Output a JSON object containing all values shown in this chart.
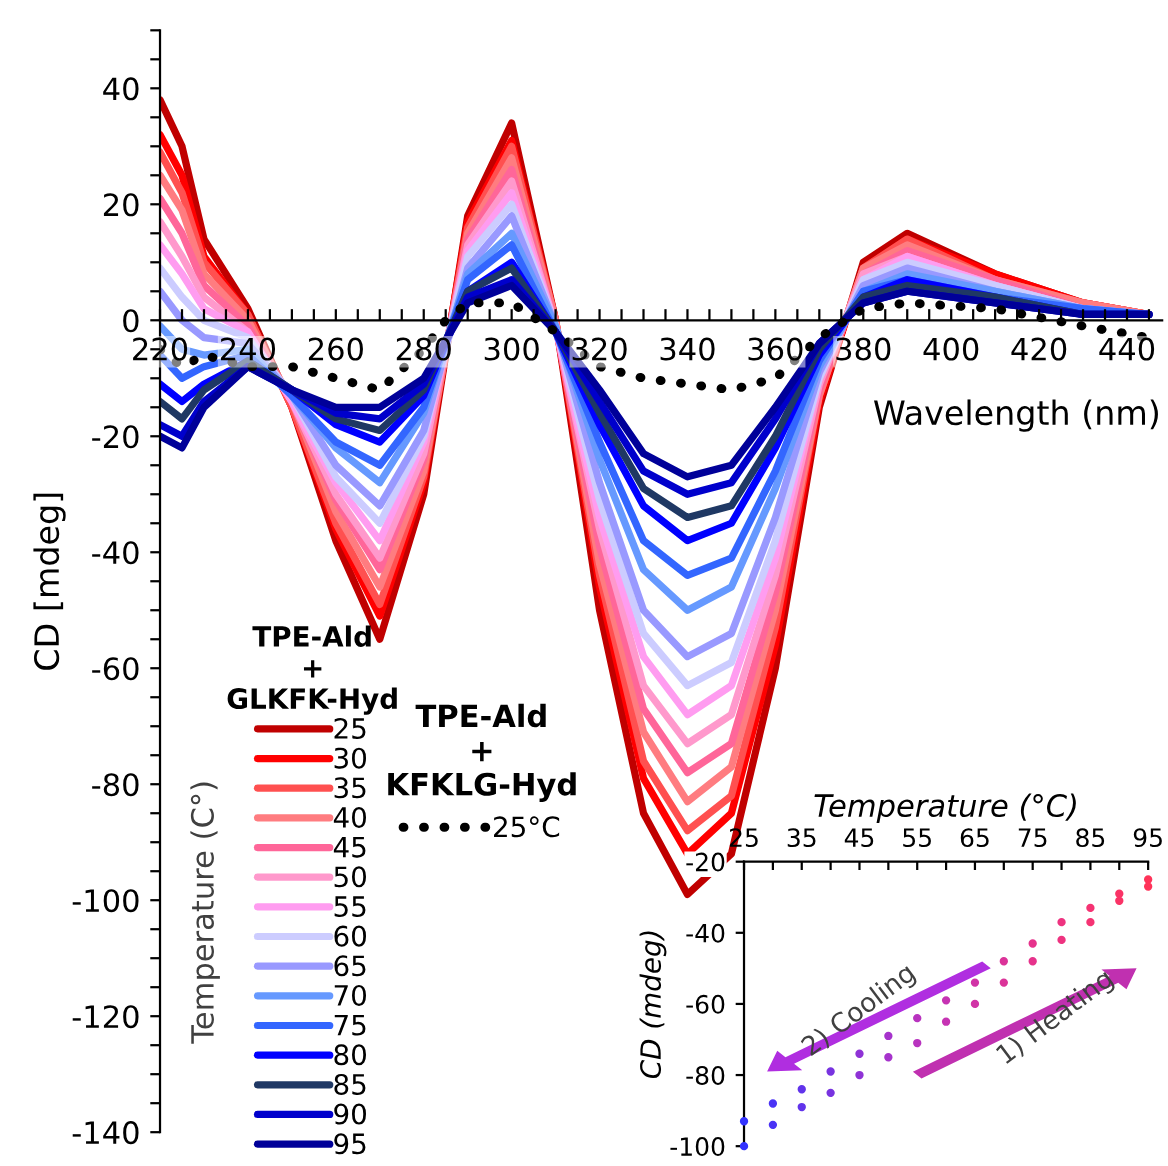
{
  "chart_data": [
    {
      "type": "line",
      "xlabel": "Wavelength (nm)",
      "ylabel": "CD [mdeg]",
      "legend_title": "TPE-Ald\n+\nGLKFK-Hyd",
      "legend": "bottom left",
      "grid": false,
      "marker": "none",
      "line_style": "solid",
      "annotations": [
        "TPE-Ald\n+\nKFKLG-Hyd",
        "Temperature (C°)"
      ],
      "xlim": [
        220,
        448
      ],
      "ylim": [
        -140,
        50
      ],
      "xticks": [
        220,
        {
          "value": 225,
          "label": null
        },
        {
          "value": 230,
          "label": null
        },
        {
          "value": 235,
          "label": null
        },
        240,
        {
          "value": 245,
          "label": null
        },
        {
          "value": 250,
          "label": null
        },
        {
          "value": 255,
          "label": null
        },
        260,
        {
          "value": 265,
          "label": null
        },
        {
          "value": 270,
          "label": null
        },
        {
          "value": 275,
          "label": null
        },
        280,
        {
          "value": 285,
          "label": null
        },
        {
          "value": 290,
          "label": null
        },
        {
          "value": 295,
          "label": null
        },
        300,
        {
          "value": 305,
          "label": null
        },
        {
          "value": 310,
          "label": null
        },
        {
          "value": 315,
          "label": null
        },
        320,
        {
          "value": 325,
          "label": null
        },
        {
          "value": 330,
          "label": null
        },
        {
          "value": 335,
          "label": null
        },
        340,
        {
          "value": 345,
          "label": null
        },
        {
          "value": 350,
          "label": null
        },
        {
          "value": 355,
          "label": null
        },
        360,
        {
          "value": 365,
          "label": null
        },
        {
          "value": 370,
          "label": null
        },
        {
          "value": 375,
          "label": null
        },
        380,
        {
          "value": 385,
          "label": null
        },
        {
          "value": 390,
          "label": null
        },
        {
          "value": 395,
          "label": null
        },
        400,
        {
          "value": 405,
          "label": null
        },
        {
          "value": 410,
          "label": null
        },
        {
          "value": 415,
          "label": null
        },
        420,
        {
          "value": 425,
          "label": null
        },
        {
          "value": 430,
          "label": null
        },
        {
          "value": 435,
          "label": null
        },
        440,
        {
          "value": 445,
          "label": null
        }
      ],
      "yticks": [
        -140,
        {
          "value": -135,
          "label": null
        },
        {
          "value": -130,
          "label": null
        },
        {
          "value": -125,
          "label": null
        },
        -120,
        {
          "value": -115,
          "label": null
        },
        {
          "value": -110,
          "label": null
        },
        {
          "value": -105,
          "label": null
        },
        -100,
        {
          "value": -95,
          "label": null
        },
        {
          "value": -90,
          "label": null
        },
        {
          "value": -85,
          "label": null
        },
        -80,
        {
          "value": -75,
          "label": null
        },
        {
          "value": -70,
          "label": null
        },
        {
          "value": -65,
          "label": null
        },
        -60,
        {
          "value": -55,
          "label": null
        },
        {
          "value": -50,
          "label": null
        },
        {
          "value": -45,
          "label": null
        },
        -40,
        {
          "value": -35,
          "label": null
        },
        {
          "value": -30,
          "label": null
        },
        {
          "value": -25,
          "label": null
        },
        -20,
        {
          "value": -15,
          "label": null
        },
        {
          "value": -10,
          "label": null
        },
        {
          "value": -5,
          "label": null
        },
        0,
        {
          "value": 5,
          "label": null
        },
        {
          "value": 10,
          "label": null
        },
        {
          "value": 15,
          "label": null
        },
        20,
        {
          "value": 25,
          "label": null
        },
        {
          "value": 30,
          "label": null
        },
        {
          "value": 35,
          "label": null
        },
        40,
        {
          "value": 45,
          "label": null
        },
        {
          "value": 50,
          "label": null
        }
      ],
      "x": [
        220,
        225,
        230,
        240,
        250,
        260,
        270,
        280,
        290,
        300,
        310,
        320,
        330,
        340,
        350,
        360,
        370,
        380,
        390,
        410,
        430,
        445
      ],
      "series": [
        {
          "name": "25",
          "color": "#c00000",
          "values": [
            38,
            30,
            14,
            2,
            -15,
            -38,
            -55,
            -30,
            18,
            34,
            0,
            -50,
            -85,
            -99,
            -92,
            -60,
            -15,
            10,
            15,
            8,
            3,
            1
          ]
        },
        {
          "name": "30",
          "color": "#ff0000",
          "values": [
            32,
            25,
            11,
            1,
            -15,
            -36,
            -51,
            -28,
            17,
            31,
            0,
            -46,
            -79,
            -92,
            -85,
            -56,
            -14,
            9,
            14,
            8,
            3,
            1
          ]
        },
        {
          "name": "35",
          "color": "#ff5050",
          "values": [
            29,
            22,
            10,
            1,
            -15,
            -35,
            -49,
            -27,
            16,
            30,
            0,
            -44,
            -76,
            -88,
            -82,
            -53,
            -13,
            9,
            14,
            7,
            3,
            1
          ]
        },
        {
          "name": "40",
          "color": "#ff7c80",
          "values": [
            25,
            19,
            8,
            0,
            -14,
            -33,
            -46,
            -26,
            15,
            28,
            0,
            -42,
            -71,
            -83,
            -77,
            -50,
            -13,
            9,
            13,
            7,
            3,
            1
          ]
        },
        {
          "name": "45",
          "color": "#ff6699",
          "values": [
            21,
            15,
            6,
            -1,
            -14,
            -31,
            -43,
            -24,
            14,
            26,
            -1,
            -39,
            -67,
            -78,
            -73,
            -47,
            -12,
            8,
            12,
            7,
            2,
            1
          ]
        },
        {
          "name": "50",
          "color": "#ff99cc",
          "values": [
            17,
            11,
            4,
            -2,
            -14,
            -30,
            -41,
            -23,
            13,
            24,
            -1,
            -36,
            -63,
            -73,
            -68,
            -44,
            -11,
            8,
            11,
            6,
            2,
            1
          ]
        },
        {
          "name": "55",
          "color": "#ff9cf0",
          "values": [
            13,
            8,
            2,
            -2,
            -14,
            -28,
            -38,
            -21,
            12,
            22,
            -1,
            -34,
            -58,
            -68,
            -63,
            -41,
            -10,
            7,
            11,
            6,
            2,
            1
          ]
        },
        {
          "name": "60",
          "color": "#ccccff",
          "values": [
            9,
            4,
            0,
            -3,
            -13,
            -27,
            -35,
            -20,
            11,
            20,
            -1,
            -31,
            -54,
            -63,
            -59,
            -38,
            -10,
            7,
            10,
            6,
            2,
            1
          ]
        },
        {
          "name": "65",
          "color": "#9999ff",
          "values": [
            5,
            0,
            -3,
            -4,
            -13,
            -25,
            -32,
            -19,
            9,
            18,
            -1,
            -28,
            -50,
            -58,
            -54,
            -34,
            -9,
            6,
            9,
            5,
            2,
            1
          ]
        },
        {
          "name": "70",
          "color": "#6699ff",
          "values": [
            -1,
            -5,
            -6,
            -5,
            -13,
            -22,
            -28,
            -16,
            8,
            15,
            -1,
            -24,
            -43,
            -50,
            -46,
            -29,
            -8,
            5,
            8,
            5,
            2,
            1
          ]
        },
        {
          "name": "75",
          "color": "#3366ff",
          "values": [
            -6,
            -10,
            -8,
            -6,
            -13,
            -21,
            -25,
            -15,
            7,
            13,
            -2,
            -21,
            -38,
            -44,
            -41,
            -26,
            -7,
            5,
            7,
            4,
            2,
            1
          ]
        },
        {
          "name": "80",
          "color": "#0000ff",
          "values": [
            -11,
            -14,
            -11,
            -7,
            -12,
            -18,
            -21,
            -13,
            5,
            10,
            -2,
            -18,
            -32,
            -38,
            -35,
            -22,
            -6,
            4,
            7,
            4,
            1,
            1
          ]
        },
        {
          "name": "85",
          "color": "#1f3864",
          "values": [
            -14,
            -17,
            -12,
            -7,
            -12,
            -17,
            -19,
            -12,
            5,
            9,
            -2,
            -16,
            -29,
            -34,
            -32,
            -20,
            -5,
            4,
            6,
            4,
            1,
            1
          ]
        },
        {
          "name": "90",
          "color": "#0000cc",
          "values": [
            -18,
            -20,
            -14,
            -8,
            -12,
            -16,
            -17,
            -11,
            4,
            7,
            -2,
            -14,
            -26,
            -30,
            -28,
            -17,
            -4,
            3,
            5,
            3,
            1,
            1
          ]
        },
        {
          "name": "95",
          "color": "#000099",
          "values": [
            -20,
            -22,
            -15,
            -8,
            -12,
            -15,
            -15,
            -10,
            3,
            6,
            -2,
            -12,
            -23,
            -27,
            -25,
            -15,
            -4,
            3,
            5,
            3,
            1,
            1
          ]
        },
        {
          "name": "25°C",
          "color": "#000000",
          "line_style": "dotted",
          "x": [
            220,
            225,
            230,
            240,
            250,
            260,
            270,
            280,
            285,
            290,
            300,
            310,
            320,
            330,
            340,
            350,
            360,
            370,
            380,
            390,
            410,
            430,
            445
          ],
          "values": [
            -5,
            -8,
            -6,
            -8,
            -8,
            -10,
            -12,
            -5,
            0,
            3,
            3,
            -2,
            -8,
            -10,
            -11,
            -12,
            -10,
            -3,
            2,
            3,
            2,
            -1,
            -3
          ]
        }
      ]
    },
    {
      "type": "scatter",
      "xlabel": "Temperature (°C)",
      "ylabel": "CD (mdeg)",
      "grid": false,
      "marker": "circle",
      "xlim": [
        25,
        95
      ],
      "ylim": [
        -100,
        -20
      ],
      "xticks": [
        25,
        {
          "value": 30,
          "label": null
        },
        35,
        {
          "value": 40,
          "label": null
        },
        45,
        {
          "value": 50,
          "label": null
        },
        55,
        {
          "value": 60,
          "label": null
        },
        65,
        {
          "value": 70,
          "label": null
        },
        75,
        {
          "value": 80,
          "label": null
        },
        85,
        {
          "value": 90,
          "label": null
        },
        95
      ],
      "yticks": [
        -100,
        -80,
        -60,
        -40,
        -20
      ],
      "annotations": [
        "2) Cooling",
        "1) Heating"
      ],
      "x": [
        25,
        30,
        35,
        40,
        45,
        50,
        55,
        60,
        65,
        70,
        75,
        80,
        85,
        90,
        95
      ],
      "series": [
        {
          "values": [
            -100,
            -94,
            -89,
            -85,
            -80,
            -75,
            -71,
            -65,
            -60,
            -54,
            -48,
            -42,
            -37,
            -31,
            -25
          ],
          "colors": [
            "#3333ff",
            "#4a33f5",
            "#6133eb",
            "#7833e0",
            "#8f33d6",
            "#a633cc",
            "#b833bf",
            "#c633b3",
            "#d133a6",
            "#db3399",
            "#e6338c",
            "#ee3380",
            "#f53373",
            "#fa3366",
            "#ff3359"
          ]
        },
        {
          "values": [
            -93,
            -88,
            -84,
            -79,
            -74,
            -69,
            -64,
            -59,
            -54,
            -48,
            -43,
            -37,
            -33,
            -29,
            -27
          ],
          "colors": [
            "#3333ff",
            "#4a33f5",
            "#6133eb",
            "#7833e0",
            "#8f33d6",
            "#a633cc",
            "#b833bf",
            "#c633b3",
            "#d133a6",
            "#db3399",
            "#e6338c",
            "#ee3380",
            "#f53373",
            "#fa3366",
            "#ff3359"
          ]
        }
      ]
    }
  ]
}
